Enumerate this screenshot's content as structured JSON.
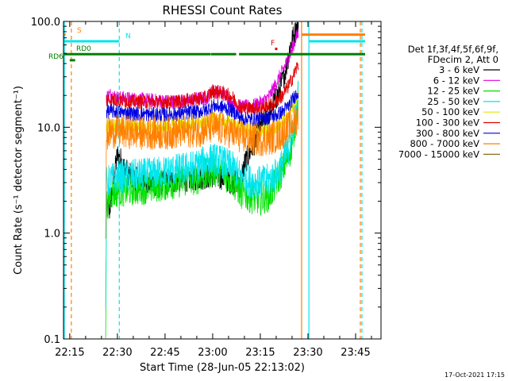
{
  "chart_data": {
    "type": "line",
    "title": "RHESSI Count Rates",
    "xlabel": "Start Time (28-Jun-05 22:13:02)",
    "ylabel": "Count Rate (s⁻¹ detector segment⁻¹)",
    "y_scale": "log",
    "ylim": [
      0.1,
      100.0
    ],
    "xlim": [
      "22:13:02",
      "23:53:00"
    ],
    "x_tick_labels": [
      "22:15",
      "22:30",
      "22:45",
      "23:00",
      "23:15",
      "23:30",
      "23:45"
    ],
    "y_tick_labels": [
      "0.1",
      "1.0",
      "10.0",
      "100.0"
    ],
    "legend_header": [
      "Det 1f,3f,4f,5f,6f,9f,",
      "FDecim 2, Att 0"
    ],
    "legend_position": "right",
    "x_axis_unit": "minutes since 22:00",
    "series": [
      {
        "name": "3 - 6 keV",
        "color": "#000000",
        "x": [
          26.5,
          27.5,
          29,
          30,
          31,
          32,
          34,
          37,
          42,
          50,
          55,
          60,
          64,
          66,
          69,
          70,
          73,
          75,
          78,
          81,
          83,
          84.5,
          86,
          87
        ],
        "values": [
          1.8,
          1.6,
          3.5,
          5.5,
          5.0,
          4.2,
          3.5,
          3.1,
          2.9,
          3.2,
          3.3,
          3.5,
          3.3,
          3.0,
          3.2,
          4.5,
          7.0,
          10.0,
          14.0,
          22.0,
          35.0,
          60.0,
          80.0,
          100.0
        ]
      },
      {
        "name": "6 - 12 keV",
        "color": "#e000e0",
        "x": [
          26.5,
          28,
          30,
          35,
          40,
          45,
          50,
          55,
          58,
          60,
          62,
          64,
          67,
          70,
          73,
          76,
          78,
          80,
          82,
          84,
          85.5,
          87
        ],
        "values": [
          19.5,
          20.5,
          19.0,
          18.5,
          18.0,
          17.5,
          17.5,
          18.5,
          19.0,
          22.0,
          21.5,
          20.0,
          16.0,
          15.5,
          16.0,
          17.5,
          20.0,
          26.0,
          34.0,
          45.0,
          60.0,
          80.0
        ]
      },
      {
        "name": "12 - 25 keV",
        "color": "#00e000",
        "x": [
          26.3,
          26.6,
          28,
          30,
          35,
          40,
          45,
          50,
          55,
          58,
          60,
          63,
          66,
          69,
          72,
          75,
          78,
          80,
          82,
          83.5,
          85,
          86.5,
          87
        ],
        "values": [
          0.12,
          1.8,
          2.4,
          2.5,
          2.6,
          2.7,
          2.9,
          3.1,
          3.3,
          3.6,
          3.9,
          3.7,
          3.2,
          2.4,
          2.2,
          2.1,
          2.3,
          3.0,
          4.0,
          5.0,
          7.0,
          14.0,
          20.0
        ]
      },
      {
        "name": "25 - 50 keV",
        "color": "#00e5ee",
        "x": [
          26.3,
          26.6,
          28,
          30,
          35,
          40,
          45,
          50,
          55,
          58,
          60,
          63,
          66,
          69,
          72,
          75,
          78,
          80,
          82,
          84,
          86,
          87
        ],
        "values": [
          0.2,
          3.0,
          3.2,
          3.4,
          3.5,
          3.6,
          3.8,
          4.0,
          4.3,
          4.8,
          5.0,
          4.7,
          4.2,
          3.4,
          3.1,
          3.0,
          3.2,
          3.6,
          4.5,
          6.5,
          12.0,
          22.0
        ]
      },
      {
        "name": "50 - 100 keV",
        "color": "#e5e500",
        "x": [
          26.5,
          28,
          30,
          35,
          40,
          45,
          50,
          55,
          58,
          60,
          63,
          66,
          69,
          72,
          75,
          78,
          81,
          83,
          84.5,
          86,
          87
        ],
        "values": [
          10.0,
          10.5,
          10.3,
          10.2,
          10.0,
          10.2,
          10.4,
          10.8,
          11.0,
          12.0,
          11.5,
          10.8,
          9.8,
          9.2,
          9.0,
          9.6,
          10.5,
          12.0,
          14.0,
          18.0,
          20.0
        ]
      },
      {
        "name": "100 - 300 keV",
        "color": "#e00000",
        "x": [
          26.5,
          28,
          30,
          35,
          40,
          45,
          50,
          55,
          58,
          60,
          63,
          66,
          69,
          72,
          75,
          78,
          80,
          82,
          84,
          85.5,
          87
        ],
        "values": [
          18.0,
          18.5,
          18.0,
          17.5,
          17.2,
          17.2,
          17.5,
          18.5,
          19.0,
          22.0,
          21.0,
          19.5,
          15.5,
          15.0,
          15.3,
          16.0,
          17.5,
          20.0,
          25.0,
          31.0,
          40.0
        ]
      },
      {
        "name": "300 - 800 keV",
        "color": "#0000e0",
        "x": [
          26.5,
          28,
          30,
          35,
          40,
          45,
          50,
          55,
          58,
          60,
          63,
          66,
          69,
          72,
          75,
          78,
          80,
          82,
          84,
          86,
          87
        ],
        "values": [
          14.0,
          14.2,
          14.0,
          13.5,
          13.2,
          13.2,
          13.5,
          14.0,
          14.5,
          16.0,
          15.5,
          14.5,
          12.2,
          11.8,
          12.0,
          12.5,
          13.0,
          14.0,
          16.0,
          20.0,
          22.0
        ]
      },
      {
        "name": "800 - 7000 keV",
        "color": "#ff8000",
        "x": [
          26.3,
          26.6,
          28,
          30,
          35,
          40,
          45,
          50,
          55,
          58,
          60,
          63,
          66,
          69,
          72,
          75,
          78,
          80,
          82,
          84,
          86,
          87
        ],
        "values": [
          1.0,
          8.5,
          9.0,
          9.2,
          8.9,
          8.8,
          8.8,
          9.0,
          9.3,
          9.6,
          10.0,
          9.6,
          8.9,
          8.1,
          7.8,
          7.6,
          7.8,
          8.2,
          8.8,
          10.0,
          11.5,
          12.5
        ]
      },
      {
        "name": "7000 - 15000 keV",
        "color": "#8b6f1e",
        "x": [],
        "values": []
      }
    ],
    "attenuator_bars": [
      {
        "label": "S",
        "color": "#ff8000",
        "segments": [
          [
            13.0,
            13.7
          ],
          [
            88.0,
            108.0
          ]
        ],
        "level": 75
      },
      {
        "label": "N",
        "color": "#00e5ee",
        "segments": [
          [
            13.0,
            30.6
          ],
          [
            90.3,
            108.0
          ]
        ],
        "level": 65
      },
      {
        "label": "F",
        "color": "#e00000",
        "segments": [
          [
            80.0,
            80.0
          ]
        ],
        "level": 55
      },
      {
        "label": "RD0",
        "color": "#008000",
        "segments": [
          [
            13.0,
            59.4
          ],
          [
            59.5,
            67.4
          ],
          [
            68.3,
            108.0
          ]
        ],
        "level": 49
      },
      {
        "label": "RD6",
        "color": "#008000",
        "segments": [
          [
            15.0,
            16.7
          ]
        ],
        "level": 43
      }
    ],
    "vertical_lines": [
      {
        "color": "#00e5ee",
        "style": "solid",
        "x": 13.0
      },
      {
        "color": "#ff8000",
        "style": "dashed",
        "x": 15.5
      },
      {
        "color": "#00e5ee",
        "style": "dashed",
        "x": 30.6
      },
      {
        "color": "#ff8000",
        "style": "solid",
        "x": 88.0
      },
      {
        "color": "#00e5ee",
        "style": "solid",
        "x": 90.3
      },
      {
        "color": "#ff8000",
        "style": "dashed",
        "x": 106.5
      },
      {
        "color": "#00e5ee",
        "style": "dashed",
        "x": 107.0
      }
    ]
  },
  "footer_timestamp": "17-Oct-2021 17:15",
  "colors": {
    "background": "#ffffff",
    "axis": "#000000",
    "legend_text": "#000000"
  }
}
